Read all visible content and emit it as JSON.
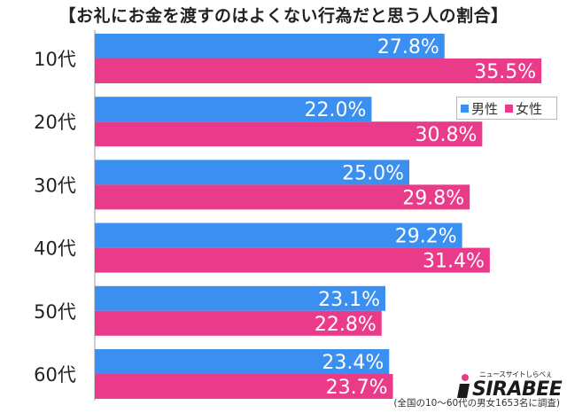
{
  "title": "【お礼にお金を渡すのはよくない行為だと思う人の割合】",
  "legend": {
    "male": "男性",
    "female": "女性"
  },
  "note": "(全国の10～60代の男女1653名に調査)",
  "logo": {
    "word": "SIRABEE",
    "tagline": "ニュースサイトしらべぇ"
  },
  "colors": {
    "male": "#3a8ff0",
    "female": "#ea3a8a"
  },
  "chart_data": {
    "type": "bar",
    "orientation": "horizontal",
    "categories": [
      "10代",
      "20代",
      "30代",
      "40代",
      "50代",
      "60代"
    ],
    "series": [
      {
        "name": "男性",
        "values": [
          27.8,
          22.0,
          25.0,
          29.2,
          23.1,
          23.4
        ]
      },
      {
        "name": "女性",
        "values": [
          35.5,
          30.8,
          29.8,
          31.4,
          22.8,
          23.7
        ]
      }
    ],
    "value_format": "%"
  }
}
